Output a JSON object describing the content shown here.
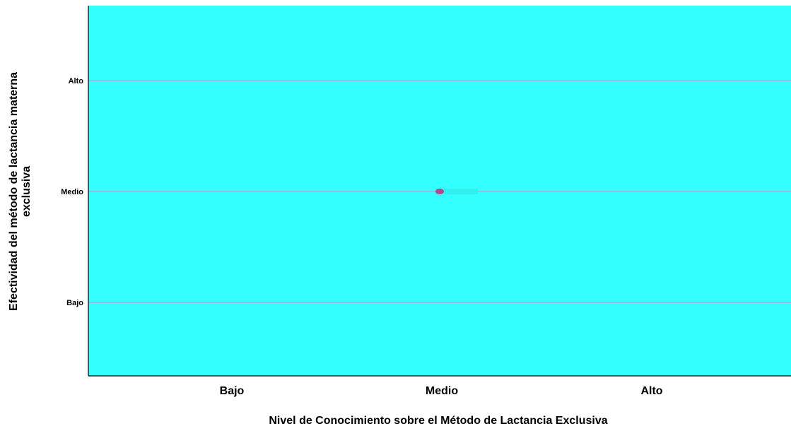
{
  "chart_data": {
    "type": "scatter",
    "x_categories": [
      "Bajo",
      "Medio",
      "Alto"
    ],
    "y_categories": [
      "Bajo",
      "Medio",
      "Alto"
    ],
    "points": [
      {
        "x": "Medio",
        "y": "Medio"
      }
    ],
    "xlabel": "Nivel de Conocimiento sobre el Método de Lactancia Exclusiva",
    "ylabel_lines": [
      "Efectividad del método de lactancia materna",
      "exclusiva"
    ],
    "grid": "horizontal",
    "colors": {
      "plot_background": "#33FFFF",
      "gridline": "#B8A6D8",
      "marker": "#B04A8A",
      "axis": "#000000"
    }
  }
}
